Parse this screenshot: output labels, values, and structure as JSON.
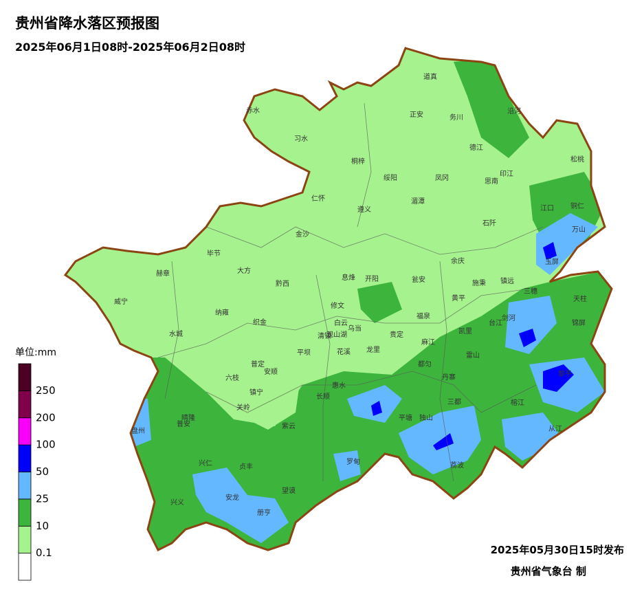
{
  "header": {
    "title": "贵州省降水落区预报图",
    "subtitle": "2025年06月1日08时-2025年06月2日08时"
  },
  "legend": {
    "unit": "单位:mm",
    "thresholds": [
      0.1,
      10,
      25,
      50,
      100,
      200,
      250
    ],
    "colors": [
      "#ffffff",
      "#a6f28e",
      "#3db53d",
      "#63b8ff",
      "#0000fe",
      "#fa00fa",
      "#81004a",
      "#4c0022"
    ]
  },
  "labels": [
    "道真",
    "正安",
    "务川",
    "沿河",
    "赤水",
    "习水",
    "桐梓",
    "德江",
    "松桃",
    "绥阳",
    "凤冈",
    "印江",
    "思南",
    "仁怀",
    "湄潭",
    "遵义",
    "江口",
    "铜仁",
    "万山",
    "石阡",
    "金沙",
    "毕节",
    "余庆",
    "玉屏",
    "大方",
    "赫章",
    "息烽",
    "开阳",
    "瓮安",
    "施秉",
    "镇远",
    "黔西",
    "三穗",
    "威宁",
    "天柱",
    "黄平",
    "修文",
    "纳雍",
    "织金",
    "福泉",
    "剑河",
    "台江",
    "白云",
    "乌当",
    "锦屏",
    "清镇",
    "观山湖",
    "贵定",
    "凯里",
    "麻江",
    "水城",
    "平坝",
    "花溪",
    "龙里",
    "雷山",
    "都匀",
    "普定",
    "安顺",
    "丹寨",
    "黎平",
    "六枝",
    "惠水",
    "镇宁",
    "长顺",
    "三都",
    "关岭",
    "平塘",
    "独山",
    "榕江",
    "晴隆",
    "普安",
    "盘州",
    "紫云",
    "从江",
    "兴仁",
    "贞丰",
    "罗甸",
    "荔波",
    "望谟",
    "安龙",
    "兴义",
    "册亨"
  ],
  "footer": {
    "issued": "2025年05月30日15时发布",
    "agency": "贵州省气象台 制"
  }
}
